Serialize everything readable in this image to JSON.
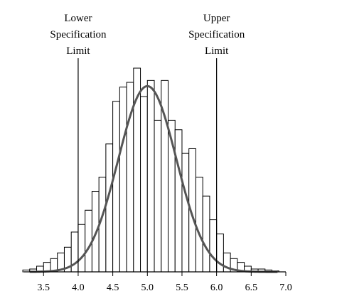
{
  "chart_data": {
    "type": "bar",
    "subtype": "histogram",
    "bin_width": 0.1,
    "bin_starts": [
      3.2,
      3.3,
      3.4,
      3.5,
      3.6,
      3.7,
      3.8,
      3.9,
      4.0,
      4.1,
      4.2,
      4.3,
      4.4,
      4.5,
      4.6,
      4.7,
      4.8,
      4.9,
      5.0,
      5.1,
      5.2,
      5.3,
      5.4,
      5.5,
      5.6,
      5.7,
      5.8,
      5.9,
      6.0,
      6.1,
      6.2,
      6.3,
      6.4,
      6.5,
      6.6,
      6.7,
      6.8
    ],
    "counts": [
      2,
      3,
      6,
      10,
      14,
      20,
      26,
      42,
      50,
      65,
      85,
      100,
      135,
      180,
      195,
      200,
      215,
      185,
      202,
      160,
      202,
      160,
      150,
      125,
      130,
      100,
      80,
      55,
      40,
      20,
      14,
      10,
      6,
      3,
      3,
      2,
      1
    ],
    "ylim": [
      0,
      212
    ],
    "xlim": [
      3.22,
      7.0
    ],
    "xticks": [
      3.5,
      4.0,
      4.5,
      5.0,
      5.5,
      6.0,
      6.5,
      7.0
    ],
    "xtick_labels": [
      "3.5",
      "4.0",
      "4.5",
      "5.0",
      "5.5",
      "6.0",
      "6.5",
      "7.0"
    ],
    "fit_curve": {
      "type": "normal",
      "mean": 5.0,
      "sd": 0.42,
      "peak": 196
    },
    "reference_lines": [
      {
        "x": 4.0,
        "label_lines": [
          "Lower",
          "Specification",
          "Limit"
        ]
      },
      {
        "x": 6.0,
        "label_lines": [
          "Upper",
          "Specification",
          "Limit"
        ]
      }
    ],
    "title": "",
    "xlabel": "",
    "ylabel": ""
  }
}
